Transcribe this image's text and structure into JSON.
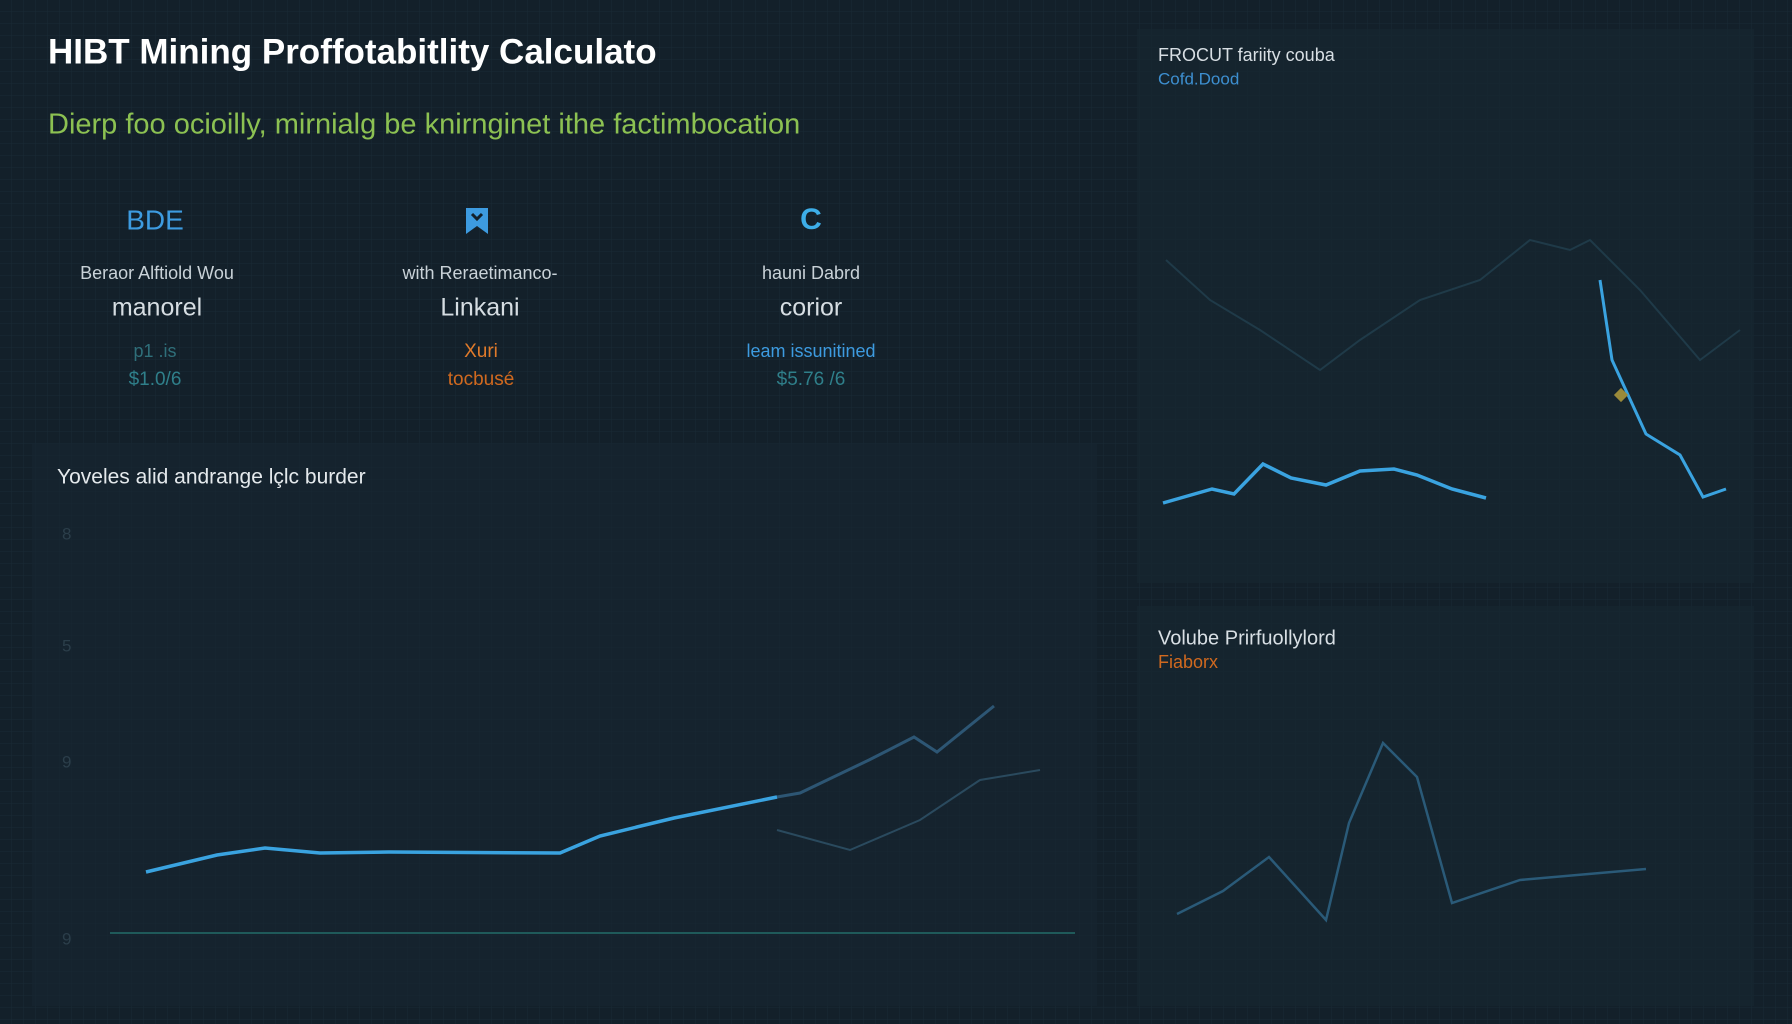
{
  "header": {
    "title": "HIBT Mining Proffotabitlity Calculato",
    "subtitle": "Dierp foo ocioilly, mirnialg be knirnginet ithe factimbocation"
  },
  "stats": [
    {
      "icon": "BDE",
      "label": "Beraor Alftiold Wou",
      "value": "manorel",
      "note": "p1 .is",
      "amount": "$1.0/6"
    },
    {
      "label": "with Reraetimanco-",
      "value": "Linkani",
      "note": "Xuri",
      "amount": "tocbusé"
    },
    {
      "icon": "C",
      "label": "hauni Dabrd",
      "value": "corior",
      "note": "leam issunitined",
      "amount": "$5.76 /6"
    }
  ],
  "main_panel": {
    "title": "Yoveles alid andrange lçlc burder",
    "axis_labels": [
      "8",
      "5",
      "9",
      "9"
    ]
  },
  "top_right_panel": {
    "title": "FROCUT fariity couba",
    "subtitle": "Cofd.Dood"
  },
  "bottom_right_panel": {
    "title": "Volube Prirfuollylord",
    "subtitle": "Fiaborx"
  }
}
